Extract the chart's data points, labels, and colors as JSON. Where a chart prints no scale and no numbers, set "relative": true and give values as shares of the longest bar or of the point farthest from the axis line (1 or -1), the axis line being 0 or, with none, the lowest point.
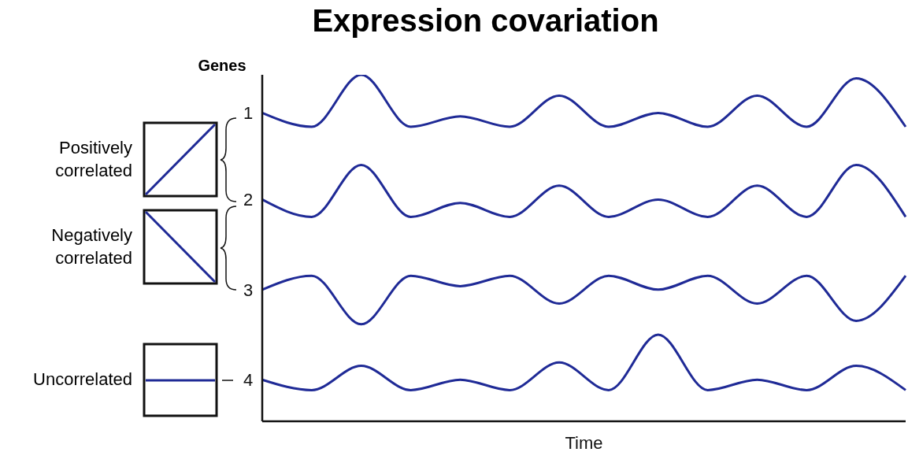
{
  "chart_data": {
    "type": "line",
    "title": "Expression covariation",
    "xlabel": "Time",
    "ylabel": "Genes",
    "relative": true,
    "legend": false,
    "grid": false,
    "marker": "none",
    "line_style": "solid",
    "annotations": [
      "Positively correlated",
      "Negatively correlated",
      "Uncorrelated"
    ],
    "categories": [
      null,
      null,
      null,
      null,
      null,
      null,
      null,
      null,
      null,
      null,
      null,
      null,
      null,
      null
    ],
    "series": [
      {
        "name": "1",
        "color": "#1f2a96",
        "values": [
          0.89,
          0.85,
          1,
          0.85,
          0.88,
          0.85,
          0.94,
          0.85,
          0.89,
          0.85,
          0.94,
          0.85,
          0.99,
          0.85
        ]
      },
      {
        "name": "2",
        "color": "#1f2a96",
        "values": [
          0.64,
          0.59,
          0.74,
          0.59,
          0.63,
          0.59,
          0.68,
          0.59,
          0.64,
          0.59,
          0.68,
          0.59,
          0.74,
          0.59
        ]
      },
      {
        "name": "3",
        "color": "#1f2a96",
        "values": [
          0.38,
          0.42,
          0.28,
          0.42,
          0.39,
          0.42,
          0.34,
          0.42,
          0.38,
          0.42,
          0.34,
          0.42,
          0.29,
          0.42
        ]
      },
      {
        "name": "4",
        "color": "#1f2a96",
        "values": [
          0.12,
          0.09,
          0.16,
          0.09,
          0.12,
          0.09,
          0.17,
          0.09,
          0.25,
          0.09,
          0.12,
          0.09,
          0.16,
          0.09
        ]
      }
    ]
  }
}
